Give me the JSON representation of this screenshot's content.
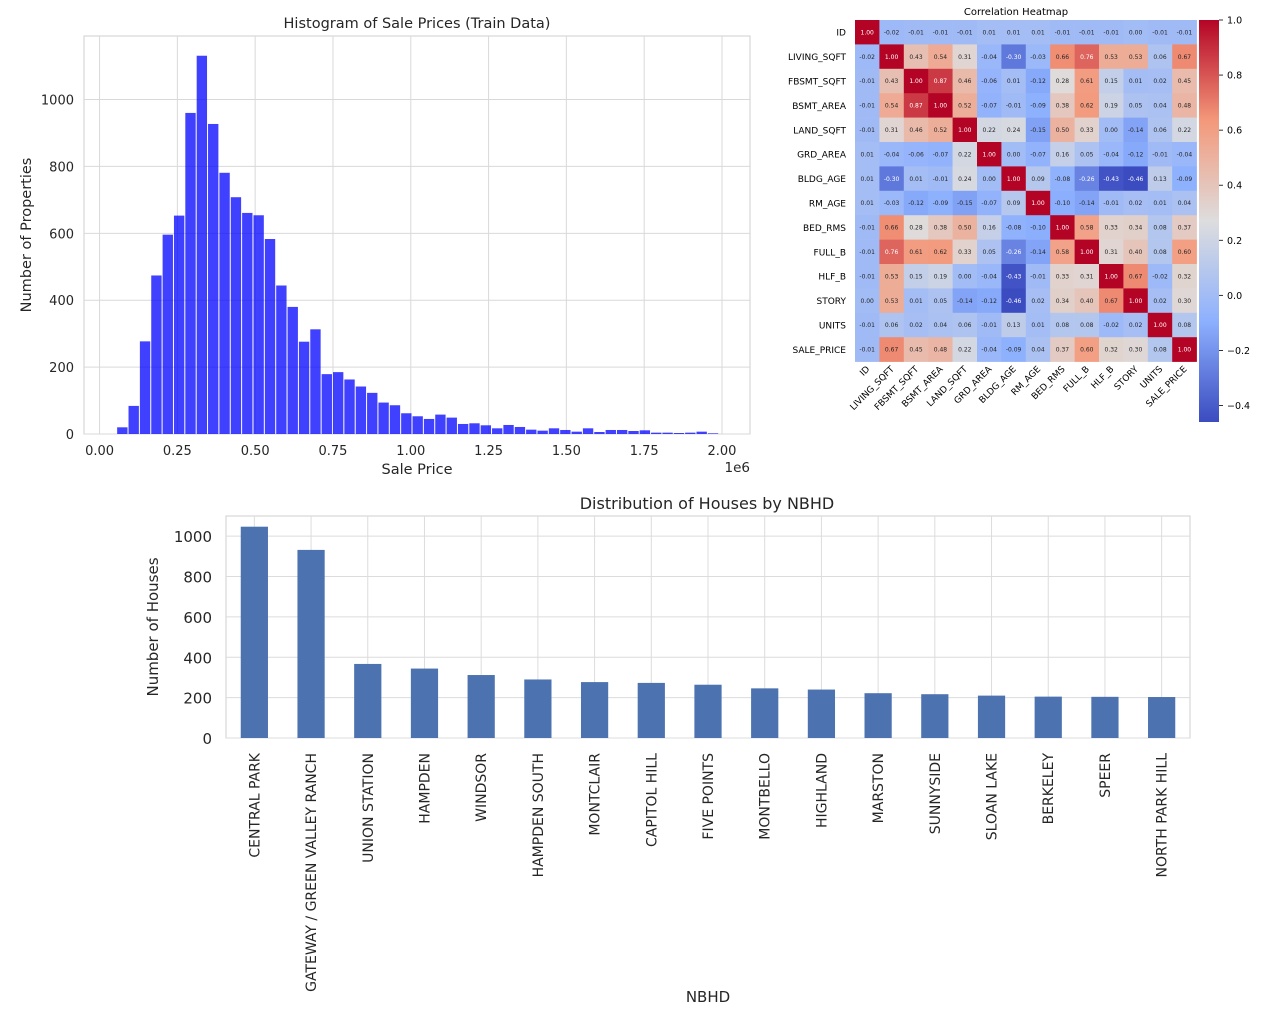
{
  "chart_data": [
    {
      "type": "bar",
      "title": "Histogram of Sale Prices (Train Data)",
      "xlabel": "Sale Price",
      "ylabel": "Number of Properties",
      "x_offset_label": "1e6",
      "bar_color": "#0000ff",
      "bin_width": 0.0365,
      "bin_centers": [
        0.0732,
        0.1097,
        0.1462,
        0.1827,
        0.2192,
        0.2557,
        0.2922,
        0.3287,
        0.3652,
        0.4017,
        0.4382,
        0.4747,
        0.5112,
        0.5477,
        0.5842,
        0.6207,
        0.6572,
        0.6937,
        0.7302,
        0.7667,
        0.8032,
        0.8397,
        0.8762,
        0.9127,
        0.9492,
        0.9857,
        1.0222,
        1.0587,
        1.0952,
        1.1317,
        1.1682,
        1.2047,
        1.2412,
        1.2777,
        1.3142,
        1.3507,
        1.3872,
        1.4237,
        1.4602,
        1.4967,
        1.5332,
        1.5697,
        1.6062,
        1.6427,
        1.6792,
        1.7157,
        1.7522,
        1.7887,
        1.8252,
        1.8617,
        1.8982,
        1.9347,
        1.9712
      ],
      "values": [
        20,
        84,
        277,
        474,
        596,
        653,
        960,
        1131,
        927,
        781,
        708,
        661,
        654,
        583,
        444,
        380,
        276,
        313,
        179,
        185,
        163,
        142,
        123,
        94,
        86,
        62,
        53,
        45,
        58,
        49,
        30,
        32,
        26,
        17,
        27,
        21,
        13,
        10,
        17,
        12,
        7,
        17,
        6,
        12,
        12,
        9,
        11,
        4,
        4,
        3,
        4,
        7,
        2
      ],
      "xlim": [
        -0.05,
        2.09
      ],
      "ylim": [
        0,
        1190
      ],
      "xticks": [
        0.0,
        0.25,
        0.5,
        0.75,
        1.0,
        1.25,
        1.5,
        1.75,
        2.0
      ],
      "xtick_labels": [
        "0.00",
        "0.25",
        "0.50",
        "0.75",
        "1.00",
        "1.25",
        "1.50",
        "1.75",
        "2.00"
      ],
      "yticks": [
        0,
        200,
        400,
        600,
        800,
        1000
      ],
      "ytick_labels": [
        "0",
        "200",
        "400",
        "600",
        "800",
        "1000"
      ],
      "grid": true,
      "legend": "none"
    },
    {
      "type": "heatmap",
      "title": "Correlation Heatmap",
      "colormap": "coolwarm",
      "vmin": -0.46,
      "vmax": 1.0,
      "colorbar_ticks": [
        1.0,
        0.8,
        0.6,
        0.4,
        0.2,
        0.0,
        -0.2,
        -0.4
      ],
      "colorbar_tick_labels": [
        "1.0",
        "0.8",
        "0.6",
        "0.4",
        "0.2",
        "0.0",
        "−0.2",
        "−0.4"
      ],
      "labels": [
        "ID",
        "LIVING_SQFT",
        "FBSMT_SQFT",
        "BSMT_AREA",
        "LAND_SQFT",
        "GRD_AREA",
        "BLDG_AGE",
        "RM_AGE",
        "BED_RMS",
        "FULL_B",
        "HLF_B",
        "STORY",
        "UNITS",
        "SALE_PRICE"
      ],
      "matrix": [
        [
          1.0,
          -0.02,
          -0.01,
          -0.01,
          -0.01,
          0.01,
          0.01,
          0.01,
          -0.01,
          -0.01,
          -0.01,
          -0.0,
          -0.01,
          -0.01
        ],
        [
          -0.02,
          1.0,
          0.43,
          0.54,
          0.31,
          -0.04,
          -0.3,
          -0.03,
          0.66,
          0.76,
          0.53,
          0.53,
          0.06,
          0.67
        ],
        [
          -0.01,
          0.43,
          1.0,
          0.87,
          0.46,
          -0.06,
          0.01,
          -0.12,
          0.28,
          0.61,
          0.15,
          0.01,
          0.02,
          0.45
        ],
        [
          -0.01,
          0.54,
          0.87,
          1.0,
          0.52,
          -0.07,
          -0.01,
          -0.09,
          0.38,
          0.62,
          0.19,
          0.05,
          0.04,
          0.48
        ],
        [
          -0.01,
          0.31,
          0.46,
          0.52,
          1.0,
          0.22,
          0.24,
          -0.15,
          0.5,
          0.33,
          0.0,
          -0.14,
          0.06,
          0.22
        ],
        [
          0.01,
          -0.04,
          -0.06,
          -0.07,
          0.22,
          1.0,
          -0.0,
          -0.07,
          0.16,
          0.05,
          -0.04,
          -0.12,
          -0.01,
          -0.04
        ],
        [
          0.01,
          -0.3,
          0.01,
          -0.01,
          0.24,
          -0.0,
          1.0,
          0.09,
          -0.08,
          -0.26,
          -0.43,
          -0.46,
          0.13,
          -0.09
        ],
        [
          0.01,
          -0.03,
          -0.12,
          -0.09,
          -0.15,
          -0.07,
          0.09,
          1.0,
          -0.1,
          -0.14,
          -0.01,
          0.02,
          0.01,
          0.04
        ],
        [
          -0.01,
          0.66,
          0.28,
          0.38,
          0.5,
          0.16,
          -0.08,
          -0.1,
          1.0,
          0.58,
          0.33,
          0.34,
          0.08,
          0.37
        ],
        [
          -0.01,
          0.76,
          0.61,
          0.62,
          0.33,
          0.05,
          -0.26,
          -0.14,
          0.58,
          1.0,
          0.31,
          0.4,
          0.08,
          0.6
        ],
        [
          -0.01,
          0.53,
          0.15,
          0.19,
          0.0,
          -0.04,
          -0.43,
          -0.01,
          0.33,
          0.31,
          1.0,
          0.67,
          -0.02,
          0.32
        ],
        [
          -0.0,
          0.53,
          0.01,
          0.05,
          -0.14,
          -0.12,
          -0.46,
          0.02,
          0.34,
          0.4,
          0.67,
          1.0,
          0.02,
          0.3
        ],
        [
          -0.01,
          0.06,
          0.02,
          0.04,
          0.06,
          -0.01,
          0.13,
          0.01,
          0.08,
          0.08,
          -0.02,
          0.02,
          1.0,
          0.08
        ],
        [
          -0.01,
          0.67,
          0.45,
          0.48,
          0.22,
          -0.04,
          -0.09,
          0.04,
          0.37,
          0.6,
          0.32,
          0.3,
          0.08,
          1.0
        ]
      ]
    },
    {
      "type": "bar",
      "title": "Distribution of Houses by NBHD",
      "xlabel": "NBHD",
      "ylabel": "Number of Houses",
      "bar_color": "#4c72b0",
      "categories": [
        "CENTRAL PARK",
        "GATEWAY / GREEN VALLEY RANCH",
        "UNION STATION",
        "HAMPDEN",
        "WINDSOR",
        "HAMPDEN SOUTH",
        "MONTCLAIR",
        "CAPITOL HILL",
        "FIVE POINTS",
        "MONTBELLO",
        "HIGHLAND",
        "MARSTON",
        "SUNNYSIDE",
        "SLOAN LAKE",
        "BERKELEY",
        "SPEER",
        "NORTH PARK HILL"
      ],
      "values": [
        1047,
        932,
        367,
        344,
        312,
        290,
        277,
        273,
        264,
        246,
        240,
        222,
        217,
        210,
        205,
        204,
        203
      ],
      "ylim": [
        0,
        1100
      ],
      "yticks": [
        0,
        200,
        400,
        600,
        800,
        1000
      ],
      "ytick_labels": [
        "0",
        "200",
        "400",
        "600",
        "800",
        "1000"
      ],
      "grid": true,
      "legend": "none"
    }
  ]
}
